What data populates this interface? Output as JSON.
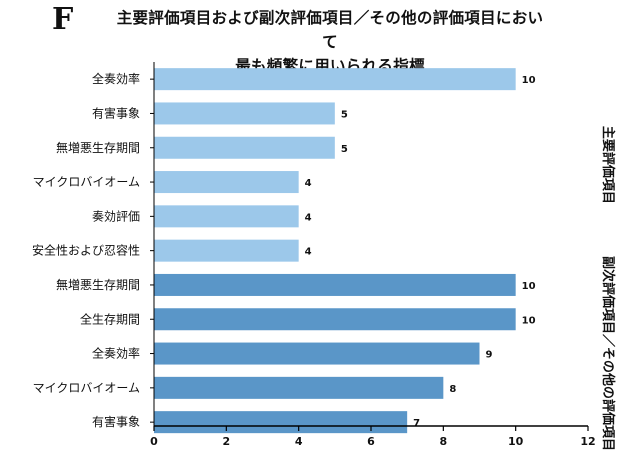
{
  "panel_letter": "F",
  "title": {
    "line1": "主要評価項目および副次評価項目／その他の評価項目において",
    "line2": "最も頻繁に用いられる指標"
  },
  "colors": {
    "primary_bar": "#9cc8ea",
    "secondary_bar": "#5a96c8",
    "axis": "#000000"
  },
  "chart_data": {
    "type": "bar",
    "orientation": "horizontal",
    "title": "主要評価項目および副次評価項目／その他の評価項目において最も頻繁に用いられる指標",
    "xlabel": "",
    "ylabel": "",
    "xlim": [
      0,
      12
    ],
    "xticks": [
      0,
      2,
      4,
      6,
      8,
      10,
      12
    ],
    "grid": false,
    "series": [
      {
        "name": "主要評価項目",
        "categories": [
          "全奏効率",
          "有害事象",
          "無増悪生存期間",
          "マイクロバイオーム",
          "奏効評価",
          "安全性および忍容性"
        ],
        "values": [
          10,
          5,
          5,
          4,
          4,
          4
        ]
      },
      {
        "name": "副次評価項目／その他の評価項目",
        "categories": [
          "無増悪生存期間",
          "全生存期間",
          "全奏効率",
          "マイクロバイオーム",
          "有害事象"
        ],
        "values": [
          10,
          10,
          9,
          8,
          7
        ]
      }
    ]
  }
}
